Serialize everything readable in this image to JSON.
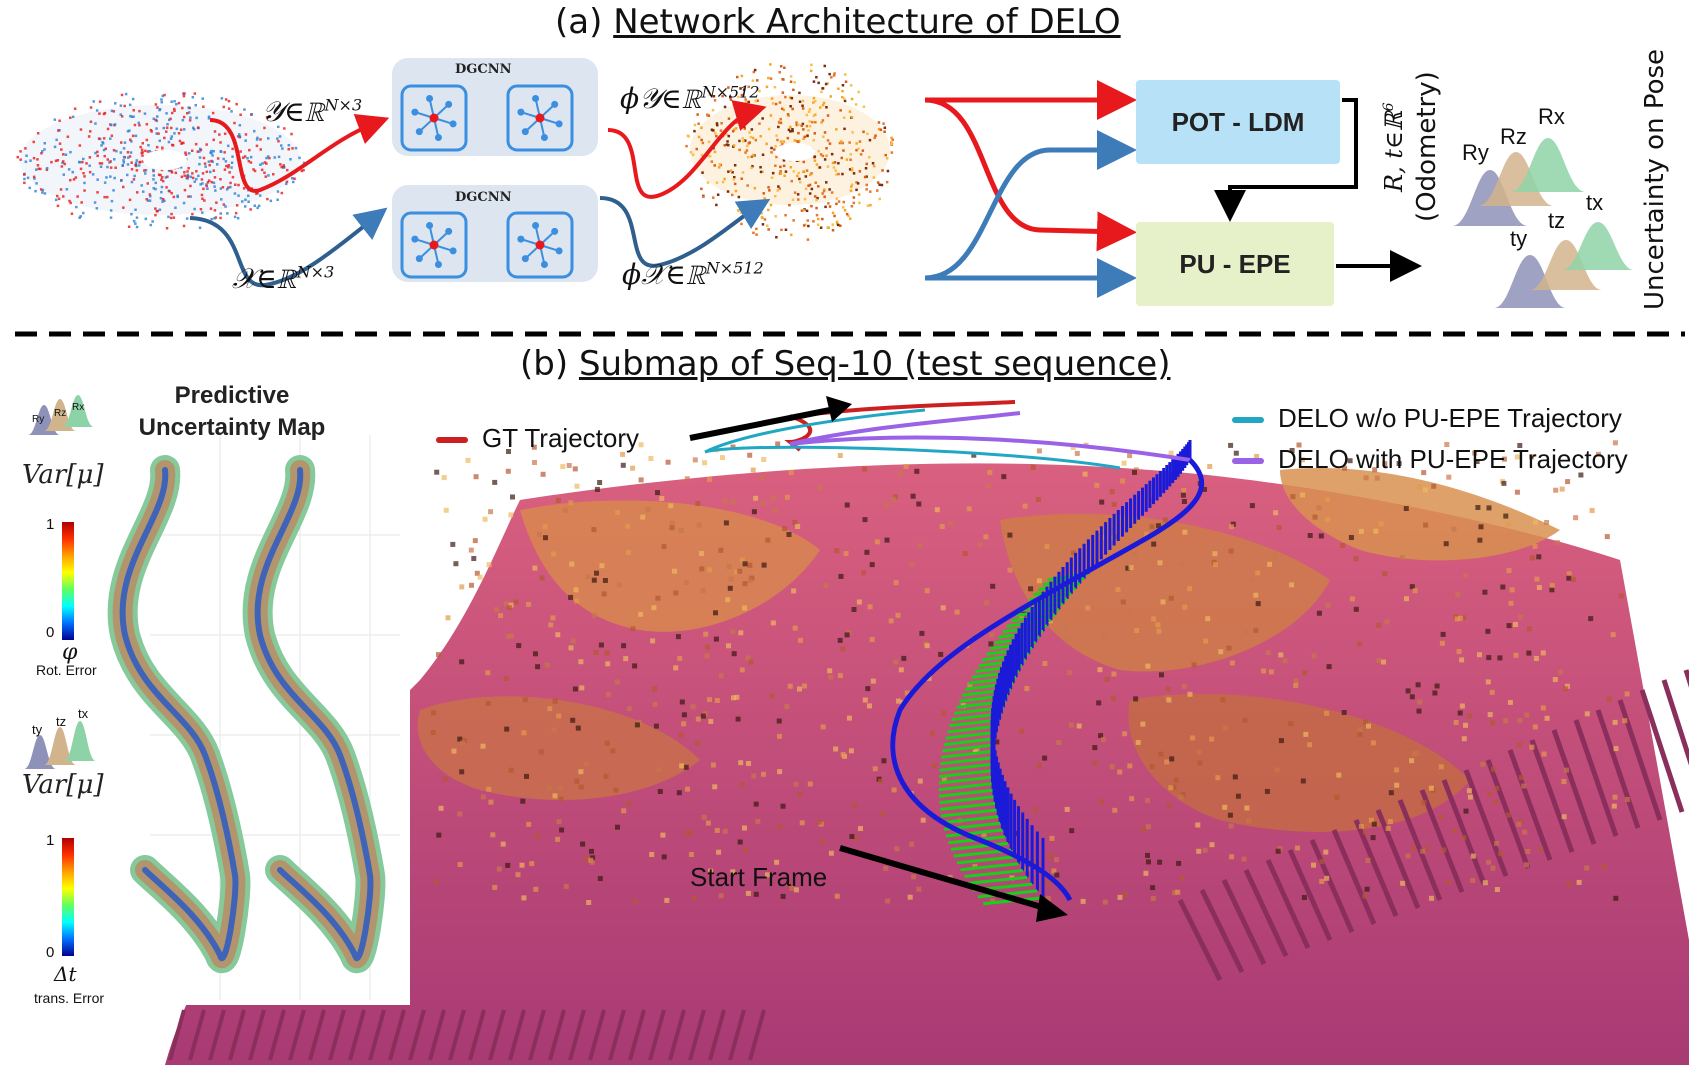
{
  "part_a": {
    "label": "(a)",
    "title": "Network Architecture of DELO"
  },
  "part_b": {
    "label": "(b)",
    "title": "Submap of Seq-10  (test sequence)"
  },
  "blocks": {
    "dgcnn_top": "DGCNN",
    "dgcnn_bottom": "DGCNN",
    "pot_ldm": "POT - LDM",
    "pu_epe": "PU - EPE"
  },
  "math": {
    "y_input": "𝒴∈ℝ",
    "y_input_sup": "N×3",
    "x_input": "𝒳∈ℝ",
    "x_input_sup": "N×3",
    "phi_y": "ϕ𝒴∈ℝ",
    "phi_y_sup": "N×512",
    "phi_x": "ϕ𝒳∈ℝ",
    "phi_x_sup": "N×512",
    "odometry_math": "R, t∈ℝ",
    "odometry_math_sup": "6",
    "odometry_label": "(Odometry)"
  },
  "uncertainty": {
    "title": "Uncertainty on Pose",
    "rot_labels": [
      "Ry",
      "Rz",
      "Rx"
    ],
    "trans_labels": [
      "ty",
      "tz",
      "tx"
    ]
  },
  "predictive_map": {
    "title_line1": "Predictive",
    "title_line2": "Uncertainty Map",
    "var_mu_1": "Var[μ]",
    "var_mu_2": "Var[μ]",
    "rot_max": "1",
    "rot_min": "0",
    "rot_symbol": "φ",
    "rot_label": "Rot. Error",
    "trans_max": "1",
    "trans_min": "0",
    "trans_symbol": "Δt",
    "trans_label": "trans. Error"
  },
  "trajectory_legend": {
    "gt": "GT Trajectory",
    "without": "DELO w/o PU-EPE Trajectory",
    "with": "DELO with PU-EPE Trajectory",
    "start": "Start Frame"
  },
  "colors": {
    "red_arrow": "#e8191c",
    "blue_arrow": "#3d7cb8",
    "pot_ldm_bg": "#b6e1f6",
    "pu_epe_bg": "#e7f1c9",
    "gt": "#cc1f1f",
    "without": "#21a7c4",
    "with": "#9a62e6",
    "ry": "#8f92b8",
    "rz": "#d2b48c",
    "rx": "#8ed3a8"
  }
}
